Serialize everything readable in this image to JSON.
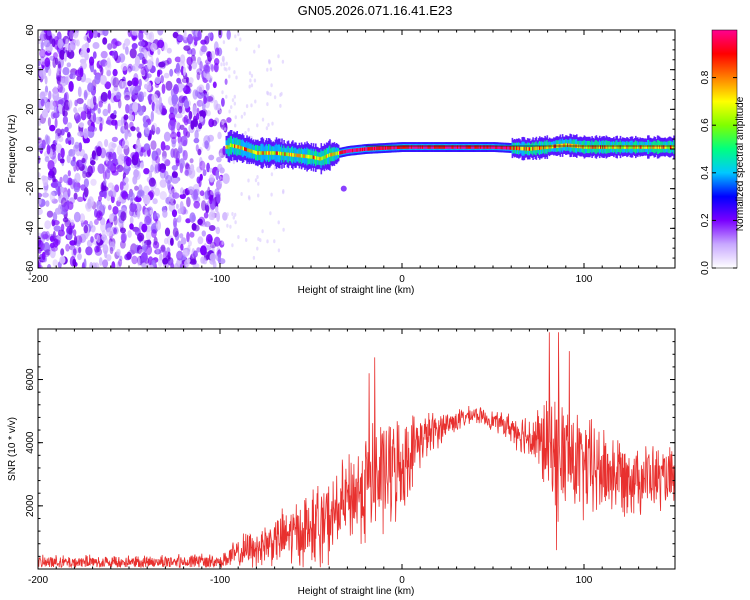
{
  "title": "GN05.2026.071.16.41.E23",
  "chart_data": [
    {
      "type": "heatmap",
      "name": "spectrogram",
      "xlabel": "Height of straight line (km)",
      "ylabel": "Frequency (Hz)",
      "xlim": [
        -200,
        150
      ],
      "ylim": [
        -60,
        60
      ],
      "xticks": [
        -200,
        -100,
        0,
        100
      ],
      "yticks": [
        -60,
        -40,
        -20,
        0,
        20,
        40,
        60
      ],
      "description_note": "Noise speckle for x < -95 km; a narrow band near 0 Hz from -95 km to 150 km; strong red core from about -30 km to 60 km",
      "ridge": [
        {
          "x": -95,
          "f": 2
        },
        {
          "x": -90,
          "f": 1
        },
        {
          "x": -80,
          "f": -2
        },
        {
          "x": -70,
          "f": -2
        },
        {
          "x": -60,
          "f": -3
        },
        {
          "x": -50,
          "f": -4
        },
        {
          "x": -45,
          "f": -5
        },
        {
          "x": -40,
          "f": -3
        },
        {
          "x": -30,
          "f": -1
        },
        {
          "x": -20,
          "f": 0
        },
        {
          "x": 0,
          "f": 1
        },
        {
          "x": 50,
          "f": 1
        },
        {
          "x": 70,
          "f": 0
        },
        {
          "x": 80,
          "f": 1
        },
        {
          "x": 90,
          "f": 2
        },
        {
          "x": 100,
          "f": 1
        },
        {
          "x": 120,
          "f": 1
        },
        {
          "x": 150,
          "f": 1
        }
      ],
      "colorbar": {
        "label": "Normalized spectral amplitude",
        "range": [
          0,
          1
        ],
        "ticks": [
          0.0,
          0.2,
          0.4,
          0.6,
          0.8
        ],
        "tick_labels": [
          "0.0",
          "0.2",
          "0.4",
          "0.6",
          "0.8"
        ],
        "colors": [
          "#ffffff",
          "#c8a8ff",
          "#7a00ff",
          "#0000ff",
          "#00c8ff",
          "#00ff80",
          "#80ff00",
          "#ffff00",
          "#ff8000",
          "#ff0000",
          "#ff0090"
        ]
      }
    },
    {
      "type": "line",
      "name": "snr",
      "xlabel": "Height of straight line (km)",
      "ylabel": "SNR (10 * v/v)",
      "xlim": [
        -200,
        150
      ],
      "ylim": [
        0,
        7600
      ],
      "xticks": [
        -200,
        -100,
        0,
        100
      ],
      "yticks": [
        2000,
        4000,
        6000
      ],
      "color": "#e8302e",
      "envelope": [
        {
          "x": -200,
          "base": 200,
          "amp": 250
        },
        {
          "x": -100,
          "base": 250,
          "amp": 300
        },
        {
          "x": -85,
          "base": 600,
          "amp": 700
        },
        {
          "x": -70,
          "base": 900,
          "amp": 900
        },
        {
          "x": -55,
          "base": 1200,
          "amp": 1400
        },
        {
          "x": -40,
          "base": 1500,
          "amp": 1500
        },
        {
          "x": -30,
          "base": 2200,
          "amp": 1600
        },
        {
          "x": -15,
          "base": 2800,
          "amp": 2400
        },
        {
          "x": 0,
          "base": 3300,
          "amp": 1800
        },
        {
          "x": 10,
          "base": 4100,
          "amp": 1000
        },
        {
          "x": 25,
          "base": 4600,
          "amp": 500
        },
        {
          "x": 40,
          "base": 4900,
          "amp": 300
        },
        {
          "x": 55,
          "base": 4600,
          "amp": 400
        },
        {
          "x": 70,
          "base": 4200,
          "amp": 900
        },
        {
          "x": 85,
          "base": 3700,
          "amp": 2300
        },
        {
          "x": 100,
          "base": 3200,
          "amp": 2000
        },
        {
          "x": 120,
          "base": 3000,
          "amp": 1500
        },
        {
          "x": 150,
          "base": 2800,
          "amp": 1100
        }
      ],
      "peaks": [
        {
          "x": -15,
          "y": 6700
        },
        {
          "x": -18,
          "y": 6200
        },
        {
          "x": 81,
          "y": 7500
        },
        {
          "x": 86,
          "y": 7500
        },
        {
          "x": 92,
          "y": 6900
        },
        {
          "x": 85,
          "y": 600
        }
      ]
    }
  ]
}
